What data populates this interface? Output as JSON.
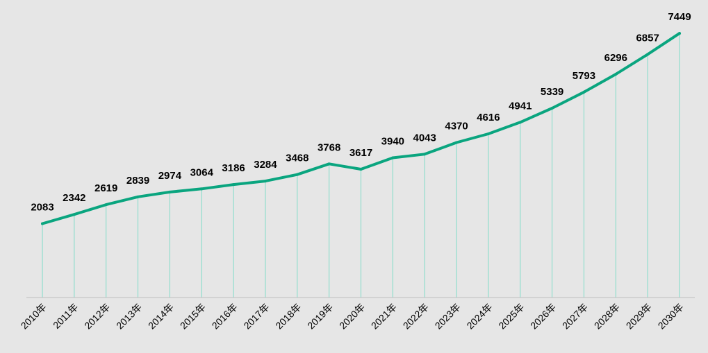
{
  "chart_data": {
    "type": "line",
    "title": "",
    "xlabel": "",
    "ylabel": "",
    "categories": [
      "2010年",
      "2011年",
      "2012年",
      "2013年",
      "2014年",
      "2015年",
      "2016年",
      "2017年",
      "2018年",
      "2019年",
      "2020年",
      "2021年",
      "2022年",
      "2023年",
      "2024年",
      "2025年",
      "2026年",
      "2027年",
      "2028年",
      "2029年",
      "2030年"
    ],
    "series": [
      {
        "name": "",
        "values": [
          2083,
          2342,
          2619,
          2839,
          2974,
          3064,
          3186,
          3284,
          3468,
          3768,
          3617,
          3940,
          4043,
          4370,
          4616,
          4941,
          5339,
          5793,
          6296,
          6857,
          7449
        ]
      }
    ],
    "data_labels": [
      "2083",
      "2342",
      "2619",
      "2839",
      "2974",
      "3064",
      "3186",
      "3284",
      "3468",
      "3768",
      "3617",
      "3940",
      "4043",
      "4370",
      "4616",
      "4941",
      "5339",
      "5793",
      "6296",
      "6857",
      "7449"
    ],
    "ylim": [
      0,
      7920
    ],
    "grid": false,
    "legend": "none",
    "colors": {
      "line": "#0aa57f",
      "drop_line": "#7fdcc8",
      "axis": "#bfbfbf",
      "background": "#e6e6e6"
    }
  }
}
